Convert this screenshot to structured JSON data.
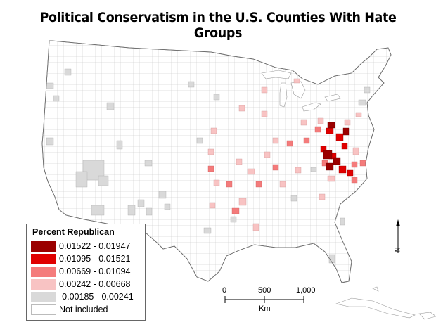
{
  "title": "Political Conservatism in the U.S. Counties With Hate Groups",
  "legend": {
    "title": "Percent Republican",
    "classes": [
      {
        "label": "0.01522 - 0.01947",
        "color": "#9b0000"
      },
      {
        "label": "0.01095 - 0.01521",
        "color": "#e00000"
      },
      {
        "label": "0.00669 - 0.01094",
        "color": "#f47b7b"
      },
      {
        "label": "0.00242 - 0.00668",
        "color": "#f8c3c3"
      },
      {
        "label": "-0.00185 - 0.00241",
        "color": "#d9d9d9"
      },
      {
        "label": "Not included",
        "color": "#ffffff"
      }
    ]
  },
  "scale_bar": {
    "ticks": [
      "0",
      "500",
      "1,000"
    ],
    "unit": "Km"
  },
  "north_arrow": {
    "label": "N"
  },
  "colors": {
    "land_fill": "#ffffff",
    "county_lines": "#b5b5b5",
    "state_lines": "#8a8a8a"
  }
}
